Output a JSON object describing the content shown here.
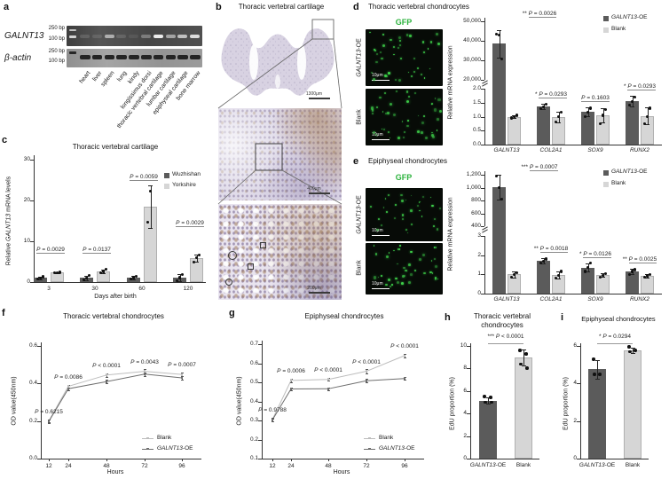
{
  "panels": {
    "a": {
      "letter": "a",
      "gene_label": "GALNT13",
      "control_label": "β-actin",
      "size_markers": [
        "250 bp",
        "100 bp"
      ],
      "lanes": [
        "heart",
        "liver",
        "spleen",
        "lung",
        "kindy",
        "longissimus dorsi",
        "thoracic vertebral cartilage",
        "lumbar cartilage",
        "epiphyseal cartilage",
        "bone marrow"
      ],
      "galnt13_band_intensities": [
        0.15,
        0.12,
        0.6,
        0.15,
        0.08,
        0.32,
        1.0,
        0.55,
        0.72,
        0.9
      ],
      "actin_band_intensities": [
        0.95,
        0.95,
        0.95,
        0.95,
        0.95,
        0.95,
        0.95,
        0.95,
        0.95,
        0.95
      ]
    },
    "b": {
      "letter": "b",
      "title": "Thoracic vertebral cartilage",
      "scale_bars": [
        "1300μm",
        "400μm",
        "200μm"
      ]
    },
    "c": {
      "letter": "c"
    },
    "d": {
      "letter": "d",
      "title": "Thoracic vertebral chondrocytes",
      "gfp_label": "GFP",
      "row_labels": [
        "GALNT13-OE",
        "Blank"
      ],
      "scale_bar": "10μm"
    },
    "e": {
      "letter": "e",
      "title": "Epiphyseal chondrocytes",
      "gfp_label": "GFP",
      "row_labels": [
        "GALNT13-OE",
        "Blank"
      ],
      "scale_bar": "10μm"
    },
    "f": {
      "letter": "f"
    },
    "g": {
      "letter": "g"
    },
    "h": {
      "letter": "h"
    },
    "i": {
      "letter": "i"
    }
  },
  "colors": {
    "oe_bar": "#5b5b5b",
    "blank_bar": "#d6d6d6",
    "gfp_green": "#3fd44a",
    "gfp_title": "#2ab23b"
  },
  "chart_data": [
    {
      "id": "c",
      "type": "bar",
      "title": "Thoracic vertebral cartilage",
      "ylabel": "Relative GALNT13 mRNA levels",
      "xlabel": "Days after birth",
      "categories": [
        "3",
        "30",
        "60",
        "120"
      ],
      "ylim": [
        0,
        30
      ],
      "yticks": [
        0,
        10,
        20,
        30
      ],
      "series": [
        {
          "name": "Wuzhishan",
          "color": "#5b5b5b",
          "values": [
            1.0,
            1.0,
            1.1,
            1.1
          ],
          "errors": [
            0.3,
            0.5,
            0.4,
            0.8
          ],
          "points": [
            [
              0.8,
              1.05,
              1.3
            ],
            [
              0.6,
              1.0,
              1.6
            ],
            [
              0.8,
              1.1,
              1.5
            ],
            [
              0.3,
              1.1,
              1.8
            ]
          ]
        },
        {
          "name": "Yorkshire",
          "color": "#d6d6d6",
          "values": [
            2.3,
            2.6,
            18.5,
            5.8
          ],
          "errors": [
            0.2,
            0.5,
            5.3,
            0.9
          ],
          "points": [
            [
              2.2,
              2.3,
              2.4
            ],
            [
              2.2,
              2.6,
              3.1
            ],
            [
              14.7,
              22.3
            ],
            [
              4.9,
              5.9,
              6.6
            ]
          ]
        }
      ],
      "pvalues": [
        {
          "stars": "",
          "text": "P = 0.0029"
        },
        {
          "stars": "",
          "text": "P = 0.0137"
        },
        {
          "stars": "",
          "text": "P = 0.0059"
        },
        {
          "stars": "",
          "text": "P = 0.0029"
        }
      ],
      "legend": [
        "Wuzhishan",
        "Yorkshire"
      ]
    },
    {
      "id": "d",
      "type": "bar-broken",
      "ylabel": "Relative mRNA expression",
      "categories": [
        "GALNT13",
        "COL2A1",
        "SOX9",
        "RUNX2"
      ],
      "top_axis": {
        "lim": [
          20000,
          50000
        ],
        "ticks": [
          "20,000",
          "30,000",
          "40,000",
          "50,000"
        ]
      },
      "bottom_axis": {
        "lim": [
          0,
          2
        ],
        "ticks": [
          "0.0",
          "0.5",
          "1.0",
          "1.5",
          "2.0"
        ]
      },
      "series": [
        {
          "name": "GALNT13-OE",
          "color": "#5b5b5b",
          "values": [
            38500,
            1.37,
            1.17,
            1.55
          ],
          "errors": [
            7000,
            0.1,
            0.15,
            0.2
          ],
          "points": [
            [
              43500,
              42800,
              30500
            ],
            [
              1.28,
              1.35,
              1.45
            ],
            [
              1.0,
              1.15,
              1.3
            ],
            [
              1.4,
              1.55,
              1.7
            ]
          ]
        },
        {
          "name": "Blank",
          "color": "#d6d6d6",
          "values": [
            1.0,
            0.98,
            1.05,
            1.02
          ],
          "errors": [
            0.06,
            0.2,
            0.25,
            0.3
          ],
          "points": [
            [
              0.95,
              1.0,
              1.05
            ],
            [
              0.8,
              1.0,
              1.15
            ],
            [
              0.75,
              1.05,
              1.25
            ],
            [
              0.75,
              1.0,
              1.3
            ]
          ]
        }
      ],
      "pvalues": [
        {
          "stars": "**",
          "text": "P = 0.0026"
        },
        {
          "stars": "*",
          "text": "P = 0.0293"
        },
        {
          "stars": "",
          "text": "P = 0.1603"
        },
        {
          "stars": "*",
          "text": "P = 0.0293"
        }
      ],
      "legend": [
        "GALNT13-OE",
        "Blank"
      ]
    },
    {
      "id": "e",
      "type": "bar-broken",
      "ylabel": "Relative mRNA expression",
      "categories": [
        "GALNT13",
        "COL2A1",
        "SOX9",
        "RUNX2"
      ],
      "top_axis": {
        "lim": [
          400,
          1200
        ],
        "ticks": [
          "400",
          "600",
          "800",
          "1,000",
          "1,200"
        ]
      },
      "bottom_axis": {
        "lim": [
          0,
          3
        ],
        "ticks": [
          "0",
          "1",
          "2",
          "3"
        ]
      },
      "series": [
        {
          "name": "GALNT13-OE",
          "color": "#5b5b5b",
          "values": [
            1010,
            1.7,
            1.35,
            1.15
          ],
          "errors": [
            190,
            0.15,
            0.2,
            0.15
          ],
          "points": [
            [
              1180,
              1005,
              825
            ],
            [
              1.6,
              1.7,
              1.8
            ],
            [
              1.15,
              1.35,
              1.6
            ],
            [
              1.0,
              1.15,
              1.25
            ]
          ]
        },
        {
          "name": "Blank",
          "color": "#d6d6d6",
          "values": [
            1.0,
            0.97,
            0.97,
            0.92
          ],
          "errors": [
            0.15,
            0.2,
            0.1,
            0.08
          ],
          "points": [
            [
              0.85,
              1.0,
              1.1
            ],
            [
              0.8,
              0.95,
              1.15
            ],
            [
              0.85,
              0.95,
              1.05
            ],
            [
              0.85,
              0.92,
              0.98
            ]
          ]
        }
      ],
      "pvalues": [
        {
          "stars": "***",
          "text": "P = 0.0007"
        },
        {
          "stars": "**",
          "text": "P = 0.0018"
        },
        {
          "stars": "*",
          "text": "P = 0.0126"
        },
        {
          "stars": "**",
          "text": "P = 0.0025"
        }
      ],
      "legend": [
        "GALNT13-OE",
        "Blank"
      ]
    },
    {
      "id": "f",
      "type": "line",
      "title": "Thoracic vertebral chondrocytes",
      "ylabel": "OD value(450nm)",
      "xlabel": "Hours",
      "x": [
        "12",
        "24",
        "48",
        "72",
        "96"
      ],
      "ylim": [
        0,
        0.6
      ],
      "yticks": [
        "0.0",
        "0.2",
        "0.4",
        "0.6"
      ],
      "series": [
        {
          "name": "Blank",
          "color": "#bdbdbd",
          "values": [
            0.2,
            0.385,
            0.445,
            0.465,
            0.448
          ],
          "errors": [
            0.008,
            0.008,
            0.01,
            0.012,
            0.01
          ]
        },
        {
          "name": "GALNT13-OE",
          "color": "#6e6e6e",
          "values": [
            0.198,
            0.372,
            0.41,
            0.45,
            0.43
          ],
          "errors": [
            0.008,
            0.008,
            0.01,
            0.01,
            0.01
          ]
        }
      ],
      "pvalues": [
        "P = 0.6215",
        "P = 0.0086",
        "P < 0.0001",
        "P = 0.0043",
        "P = 0.0007"
      ],
      "legend": [
        "Blank",
        "GALNT13-OE"
      ]
    },
    {
      "id": "g",
      "type": "line",
      "title": "Epiphyseal chondrocytes",
      "ylabel": "OD value(450nm)",
      "xlabel": "Hours",
      "x": [
        "12",
        "24",
        "48",
        "72",
        "96"
      ],
      "ylim": [
        0.1,
        0.7
      ],
      "yticks": [
        "0.1",
        "0.2",
        "0.3",
        "0.4",
        "0.5",
        "0.6",
        "0.7"
      ],
      "series": [
        {
          "name": "Blank",
          "color": "#bdbdbd",
          "values": [
            0.305,
            0.51,
            0.515,
            0.558,
            0.64
          ],
          "errors": [
            0.008,
            0.008,
            0.008,
            0.012,
            0.01
          ]
        },
        {
          "name": "GALNT13-OE",
          "color": "#6e6e6e",
          "values": [
            0.303,
            0.465,
            0.466,
            0.508,
            0.52
          ],
          "errors": [
            0.008,
            0.008,
            0.008,
            0.01,
            0.008
          ]
        }
      ],
      "pvalues": [
        "P = 0.9788",
        "P = 0.0006",
        "P < 0.0001",
        "P < 0.0001",
        "P < 0.0001"
      ],
      "legend": [
        "Blank",
        "GALNT13-OE"
      ]
    },
    {
      "id": "h",
      "type": "bar2",
      "title": [
        "Thoracic vertebral",
        "chondrocytes"
      ],
      "ylabel": "EdU proportion (%)",
      "categories": [
        "GALNT13-OE",
        "Blank"
      ],
      "values": [
        5.15,
        9.0
      ],
      "errors": [
        0.25,
        0.7
      ],
      "points": [
        [
          5.5,
          5.45,
          5.0,
          5.0
        ],
        [
          9.6,
          9.3,
          8.4,
          8.05
        ]
      ],
      "colors": [
        "#5b5b5b",
        "#d6d6d6"
      ],
      "ylim": [
        0,
        10
      ],
      "yticks": [
        0,
        2,
        4,
        6,
        8,
        10
      ],
      "pvalue": {
        "stars": "***",
        "text": "P < 0.0001"
      }
    },
    {
      "id": "i",
      "type": "bar2",
      "title": "Epiphyseal chondrocytes",
      "ylabel": "EdU proportion (%)",
      "categories": [
        "GALNT13-OE",
        "Blank"
      ],
      "values": [
        4.75,
        5.75
      ],
      "errors": [
        0.5,
        0.15
      ],
      "points": [
        [
          5.3,
          4.5,
          4.5
        ],
        [
          5.95,
          5.75,
          5.7
        ]
      ],
      "colors": [
        "#5b5b5b",
        "#d6d6d6"
      ],
      "ylim": [
        0,
        6
      ],
      "yticks": [
        0,
        2,
        4,
        6
      ],
      "pvalue": {
        "stars": "*",
        "text": "P = 0.0294"
      }
    }
  ]
}
